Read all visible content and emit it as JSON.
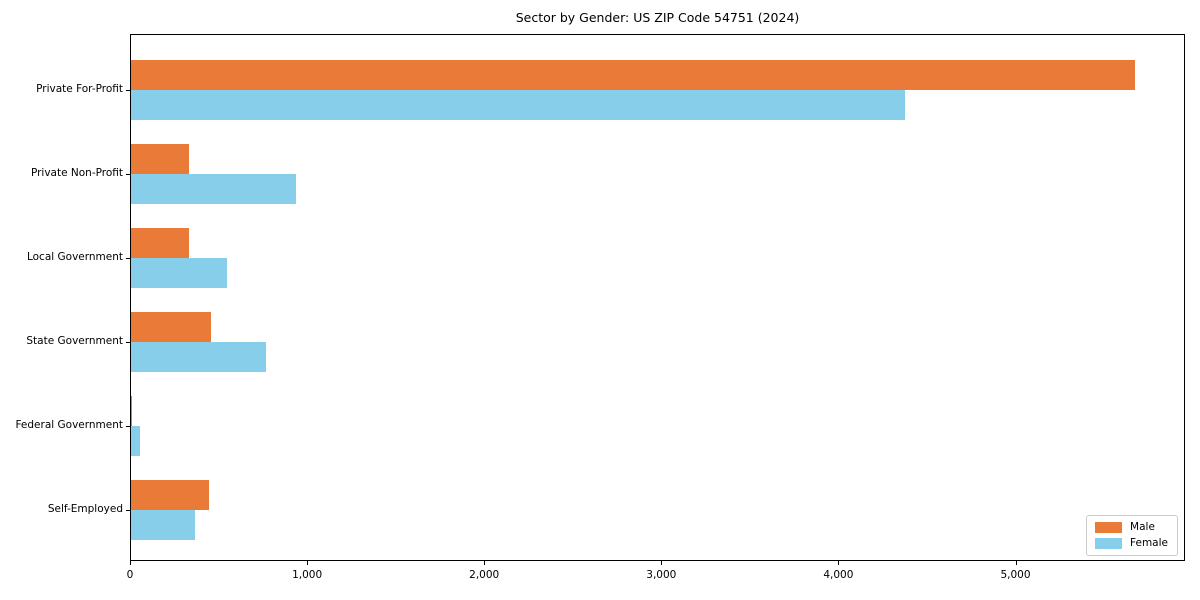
{
  "chart_data": {
    "type": "bar",
    "orientation": "horizontal",
    "title": "Sector by Gender: US ZIP Code 54751 (2024)",
    "categories": [
      "Private For-Profit",
      "Private Non-Profit",
      "Local Government",
      "State Government",
      "Federal Government",
      "Self-Employed"
    ],
    "series": [
      {
        "name": "Male",
        "color": "#EA7A38",
        "values": [
          5670,
          330,
          330,
          450,
          6,
          440
        ]
      },
      {
        "name": "Female",
        "color": "#87CEEB",
        "values": [
          4370,
          930,
          540,
          760,
          50,
          360
        ]
      }
    ],
    "xlabel": "",
    "ylabel": "",
    "xlim": [
      0,
      5957
    ],
    "xticks": [
      {
        "value": 0,
        "label": "0"
      },
      {
        "value": 1000,
        "label": "1,000"
      },
      {
        "value": 2000,
        "label": "2,000"
      },
      {
        "value": 3000,
        "label": "3,000"
      },
      {
        "value": 4000,
        "label": "4,000"
      },
      {
        "value": 5000,
        "label": "5,000"
      }
    ],
    "grid": false,
    "legend_position": "lower right",
    "background_color": "#ffffff",
    "axis_color": "#000000"
  }
}
